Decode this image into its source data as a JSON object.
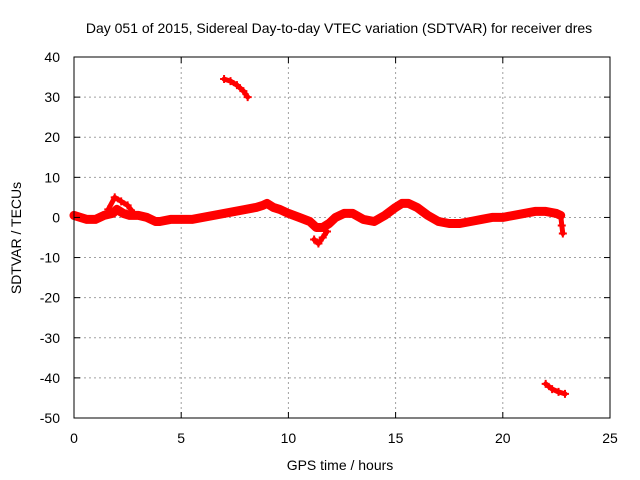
{
  "chart_data": {
    "type": "scatter",
    "title": "Day 051 of 2015, Sidereal Day-to-day VTEC variation (SDTVAR) for receiver dres",
    "xlabel": "GPS time / hours",
    "ylabel": "SDTVAR / TECUs",
    "xlim": [
      0,
      25
    ],
    "ylim": [
      -50,
      40
    ],
    "xticks": [
      0,
      5,
      10,
      15,
      20,
      25
    ],
    "yticks": [
      -50,
      -40,
      -30,
      -20,
      -10,
      0,
      10,
      20,
      30,
      40
    ],
    "grid": true,
    "series_color": "#ff0000",
    "series": [
      {
        "name": "main-band",
        "band": true,
        "x": [
          0.0,
          0.3,
          0.6,
          1.0,
          1.4,
          1.8,
          2.0,
          2.3,
          2.6,
          3.0,
          3.4,
          3.8,
          4.0,
          4.5,
          5.0,
          5.5,
          6.0,
          6.5,
          7.0,
          7.5,
          8.0,
          8.5,
          8.8,
          9.0,
          9.3,
          9.6,
          10.0,
          10.5,
          11.0,
          11.3,
          11.6,
          11.9,
          12.2,
          12.6,
          13.0,
          13.5,
          14.0,
          14.5,
          15.0,
          15.3,
          15.6,
          16.0,
          16.5,
          17.0,
          17.5,
          18.0,
          18.5,
          19.0,
          19.5,
          20.0,
          20.5,
          21.0,
          21.5,
          22.0,
          22.5,
          22.7
        ],
        "y": [
          0.5,
          0.0,
          -0.5,
          -0.5,
          0.5,
          1.0,
          2.0,
          1.0,
          0.5,
          0.5,
          0.0,
          -1.0,
          -1.0,
          -0.5,
          -0.5,
          -0.5,
          0.0,
          0.5,
          1.0,
          1.5,
          2.0,
          2.5,
          3.0,
          3.5,
          2.5,
          2.0,
          1.0,
          0.0,
          -1.0,
          -2.5,
          -2.5,
          -1.5,
          0.0,
          1.0,
          1.0,
          -0.5,
          -1.0,
          0.5,
          2.5,
          3.5,
          3.5,
          2.5,
          0.5,
          -1.0,
          -1.5,
          -1.5,
          -1.0,
          -0.5,
          0.0,
          0.0,
          0.5,
          1.0,
          1.5,
          1.5,
          1.0,
          0.5
        ]
      },
      {
        "name": "upper-segment",
        "x": [
          7.0,
          7.3,
          7.6,
          7.9,
          8.1
        ],
        "y": [
          34.5,
          34.0,
          33.0,
          31.5,
          30.0
        ]
      },
      {
        "name": "lower-segment",
        "x": [
          22.0,
          22.3,
          22.6,
          22.9
        ],
        "y": [
          -41.5,
          -42.8,
          -43.5,
          -44.0
        ]
      },
      {
        "name": "dip-segment",
        "x": [
          11.2,
          11.4,
          11.6,
          11.8
        ],
        "y": [
          -5.5,
          -6.5,
          -5.0,
          -3.5
        ]
      },
      {
        "name": "left-wiggle",
        "x": [
          1.6,
          1.9,
          2.2,
          2.5,
          2.8
        ],
        "y": [
          2.0,
          5.0,
          4.0,
          3.0,
          1.0
        ]
      },
      {
        "name": "end-drop",
        "x": [
          22.7,
          22.75,
          22.8
        ],
        "y": [
          0.5,
          -2.0,
          -4.0
        ]
      }
    ]
  }
}
